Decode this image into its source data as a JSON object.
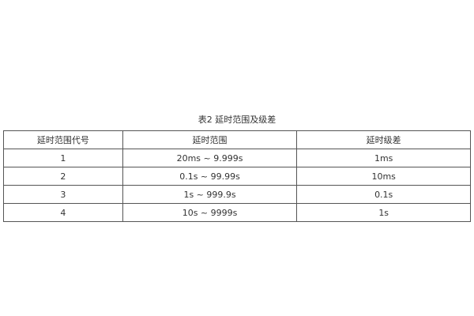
{
  "caption": "表2  延时范围及级差",
  "table": {
    "headers": [
      "延时范围代号",
      "延时范围",
      "延时级差"
    ],
    "rows": [
      [
        "1",
        "20ms ~ 9.999s",
        "1ms"
      ],
      [
        "2",
        "0.1s ~ 99.99s",
        "10ms"
      ],
      [
        "3",
        "1s ~ 999.9s",
        "0.1s"
      ],
      [
        "4",
        "10s ~ 9999s",
        "1s"
      ]
    ]
  }
}
